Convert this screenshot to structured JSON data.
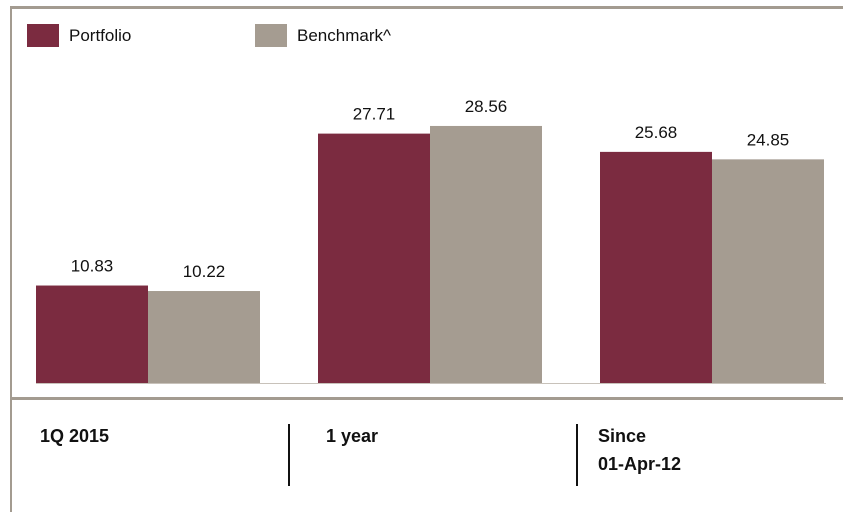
{
  "chart_data": {
    "type": "bar",
    "categories": [
      "1Q 2015",
      "1 year",
      "Since 01-Apr-12"
    ],
    "category_lines": [
      [
        "1Q 2015"
      ],
      [
        "1 year"
      ],
      [
        "Since",
        "01-Apr-12"
      ]
    ],
    "series": [
      {
        "name": "Portfolio",
        "values": [
          10.83,
          27.71,
          25.68
        ],
        "color": "#7b2b40"
      },
      {
        "name": "Benchmark^",
        "values": [
          10.22,
          28.56,
          24.85
        ],
        "color": "#a59c91"
      }
    ],
    "legend_position": "top-left",
    "grid": false
  },
  "colors": {
    "frame": "#a39b90",
    "baseline": "#c8c2ba"
  }
}
